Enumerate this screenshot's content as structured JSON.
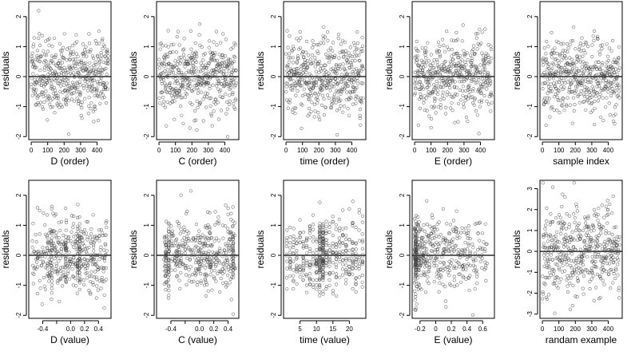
{
  "chart_data": [
    {
      "type": "scatter",
      "xlabel": "D (order)",
      "ylabel": "residuals",
      "xlim": [
        -15,
        485
      ],
      "ylim": [
        -2.1,
        2.5
      ],
      "xticks": [
        0,
        100,
        200,
        300,
        400
      ],
      "yticks": [
        -2,
        -1,
        0,
        1,
        2
      ],
      "hline": 0,
      "xgen": "order",
      "seed": 11
    },
    {
      "type": "scatter",
      "xlabel": "C (order)",
      "ylabel": "residuals",
      "xlim": [
        -15,
        485
      ],
      "ylim": [
        -2.1,
        2.5
      ],
      "xticks": [
        0,
        100,
        200,
        300,
        400
      ],
      "yticks": [
        -2,
        -1,
        0,
        1,
        2
      ],
      "hline": 0,
      "xgen": "order",
      "seed": 23
    },
    {
      "type": "scatter",
      "xlabel": "time (order)",
      "ylabel": "residuals",
      "xlim": [
        -15,
        485
      ],
      "ylim": [
        -2.1,
        2.5
      ],
      "xticks": [
        0,
        100,
        200,
        300,
        400
      ],
      "yticks": [
        -2,
        -1,
        0,
        1,
        2
      ],
      "hline": 0,
      "xgen": "order",
      "seed": 37
    },
    {
      "type": "scatter",
      "xlabel": "E (order)",
      "ylabel": "residuals",
      "xlim": [
        -15,
        485
      ],
      "ylim": [
        -2.1,
        2.5
      ],
      "xticks": [
        0,
        100,
        200,
        300,
        400
      ],
      "yticks": [
        -2,
        -1,
        0,
        1,
        2
      ],
      "hline": 0,
      "xgen": "order",
      "seed": 41
    },
    {
      "type": "scatter",
      "xlabel": "sample index",
      "ylabel": "residuals",
      "xlim": [
        -15,
        485
      ],
      "ylim": [
        -2.1,
        2.5
      ],
      "xticks": [
        0,
        100,
        200,
        300,
        400
      ],
      "yticks": [
        -2,
        -1,
        0,
        1,
        2
      ],
      "hline": 0,
      "xgen": "order",
      "seed": 53
    },
    {
      "type": "scatter",
      "xlabel": "D (value)",
      "ylabel": "residuals",
      "xlim": [
        -0.6,
        0.58
      ],
      "ylim": [
        -2.1,
        2.5
      ],
      "xticks": [
        -0.4,
        -0.2,
        0.0,
        0.2,
        0.4
      ],
      "xticklabels": [
        "-0.4",
        "",
        "0.0",
        "0.2",
        "0.4"
      ],
      "yticks": [
        -2,
        -1,
        0,
        1,
        2
      ],
      "hline": 0,
      "xgen": "value-uniform",
      "xrange": [
        -0.55,
        0.52
      ],
      "stripes": [
        -0.27,
        -0.07,
        0.1,
        0.13
      ],
      "seed": 67
    },
    {
      "type": "scatter",
      "xlabel": "C (value)",
      "ylabel": "residuals",
      "xlim": [
        -0.6,
        0.55
      ],
      "ylim": [
        -2.1,
        2.5
      ],
      "xticks": [
        -0.4,
        -0.2,
        0.0,
        0.2,
        0.4
      ],
      "xticklabels": [
        "-0.4",
        "",
        "0.0",
        "0.2",
        "0.4"
      ],
      "yticks": [
        -2,
        -1,
        0,
        1,
        2
      ],
      "hline": 0,
      "xgen": "value-uniform",
      "xrange": [
        -0.5,
        0.5
      ],
      "stripes": [
        -0.47,
        -0.43,
        0.47
      ],
      "seed": 71
    },
    {
      "type": "scatter",
      "xlabel": "time (value)",
      "ylabel": "residuals",
      "xlim": [
        0,
        25
      ],
      "ylim": [
        -2.1,
        2.5
      ],
      "xticks": [
        5,
        10,
        15,
        20
      ],
      "yticks": [
        -2,
        -1,
        0,
        1,
        2
      ],
      "hline": 0,
      "xgen": "value-grid",
      "xgrid": [
        1,
        2,
        3,
        4,
        5,
        6,
        7,
        8,
        9,
        10,
        11,
        12,
        13,
        14,
        15,
        16,
        17,
        18,
        19,
        20,
        21,
        22,
        23,
        24
      ],
      "stripes": [
        11,
        12
      ],
      "seed": 83
    },
    {
      "type": "scatter",
      "xlabel": "E (value)",
      "ylabel": "residuals",
      "xlim": [
        -0.3,
        0.75
      ],
      "ylim": [
        -2.1,
        2.5
      ],
      "xticks": [
        -0.2,
        0.0,
        0.2,
        0.4,
        0.6
      ],
      "yticks": [
        -2,
        -1,
        0,
        1,
        2
      ],
      "hline": 0,
      "xgen": "value-skew",
      "xrange": [
        -0.27,
        0.66
      ],
      "stripes": [
        -0.26,
        -0.25
      ],
      "seed": 97
    },
    {
      "type": "scatter",
      "xlabel": "randam example",
      "ylabel": "residuals",
      "xlim": [
        -15,
        485
      ],
      "ylim": [
        -3.2,
        3.4
      ],
      "xticks": [
        0,
        100,
        200,
        300,
        400
      ],
      "yticks": [
        -3,
        -2,
        -1,
        0,
        1,
        2,
        3
      ],
      "hline": 0,
      "xgen": "order",
      "seed": 109
    }
  ]
}
